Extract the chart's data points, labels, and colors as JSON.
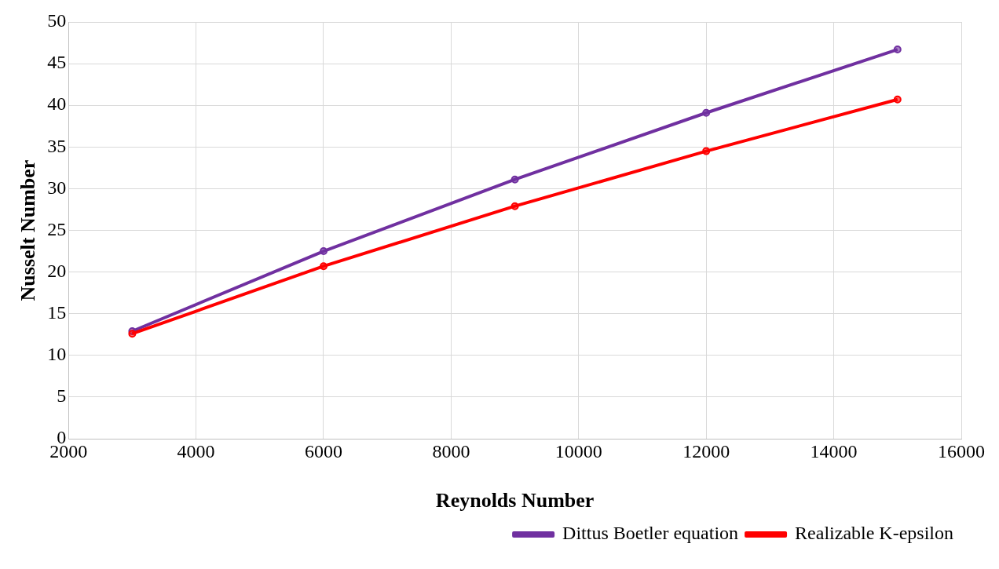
{
  "chart_data": {
    "type": "line",
    "xlabel": "Reynolds Number",
    "ylabel": "Nusselt Number",
    "x": [
      3000,
      6000,
      9000,
      12000,
      15000
    ],
    "series": [
      {
        "name": "Dittus Boetler equation",
        "color": "#7030a0",
        "values": [
          12.9,
          22.5,
          31.1,
          39.1,
          46.7
        ]
      },
      {
        "name": "Realizable K-epsilon",
        "color": "#ff0000",
        "values": [
          12.6,
          20.7,
          27.9,
          34.5,
          40.7
        ]
      }
    ],
    "xlim": [
      2000,
      16000
    ],
    "xticks": [
      2000,
      4000,
      6000,
      8000,
      10000,
      12000,
      14000,
      16000
    ],
    "ylim": [
      0,
      50
    ],
    "yticks": [
      0,
      5,
      10,
      15,
      20,
      25,
      30,
      35,
      40,
      45,
      50
    ],
    "grid": true,
    "legend": "bottom right",
    "marker": "circle",
    "line_style": "solid"
  }
}
